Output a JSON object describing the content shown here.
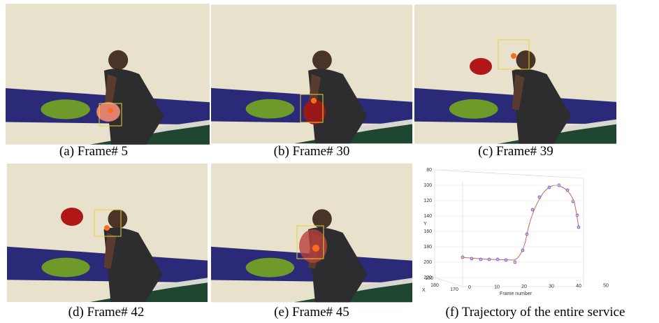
{
  "panels": [
    {
      "caption": "(a)  Frame# 5"
    },
    {
      "caption": "(b) Frame# 30"
    },
    {
      "caption": "(c) Frame# 39"
    },
    {
      "caption": "(d) Frame# 42"
    },
    {
      "caption": "(e) Frame# 45"
    },
    {
      "caption": "(f) Trajectory of the entire service"
    }
  ],
  "plot": {
    "y_label": "Y",
    "x_label": "X",
    "z_label": "Frame number",
    "y_ticks": [
      "80",
      "100",
      "120",
      "140",
      "160",
      "180",
      "200",
      "220"
    ],
    "x_ticks": [
      "150",
      "180",
      "170"
    ],
    "z_ticks": [
      "0",
      "10",
      "20",
      "30",
      "40",
      "50"
    ]
  }
}
